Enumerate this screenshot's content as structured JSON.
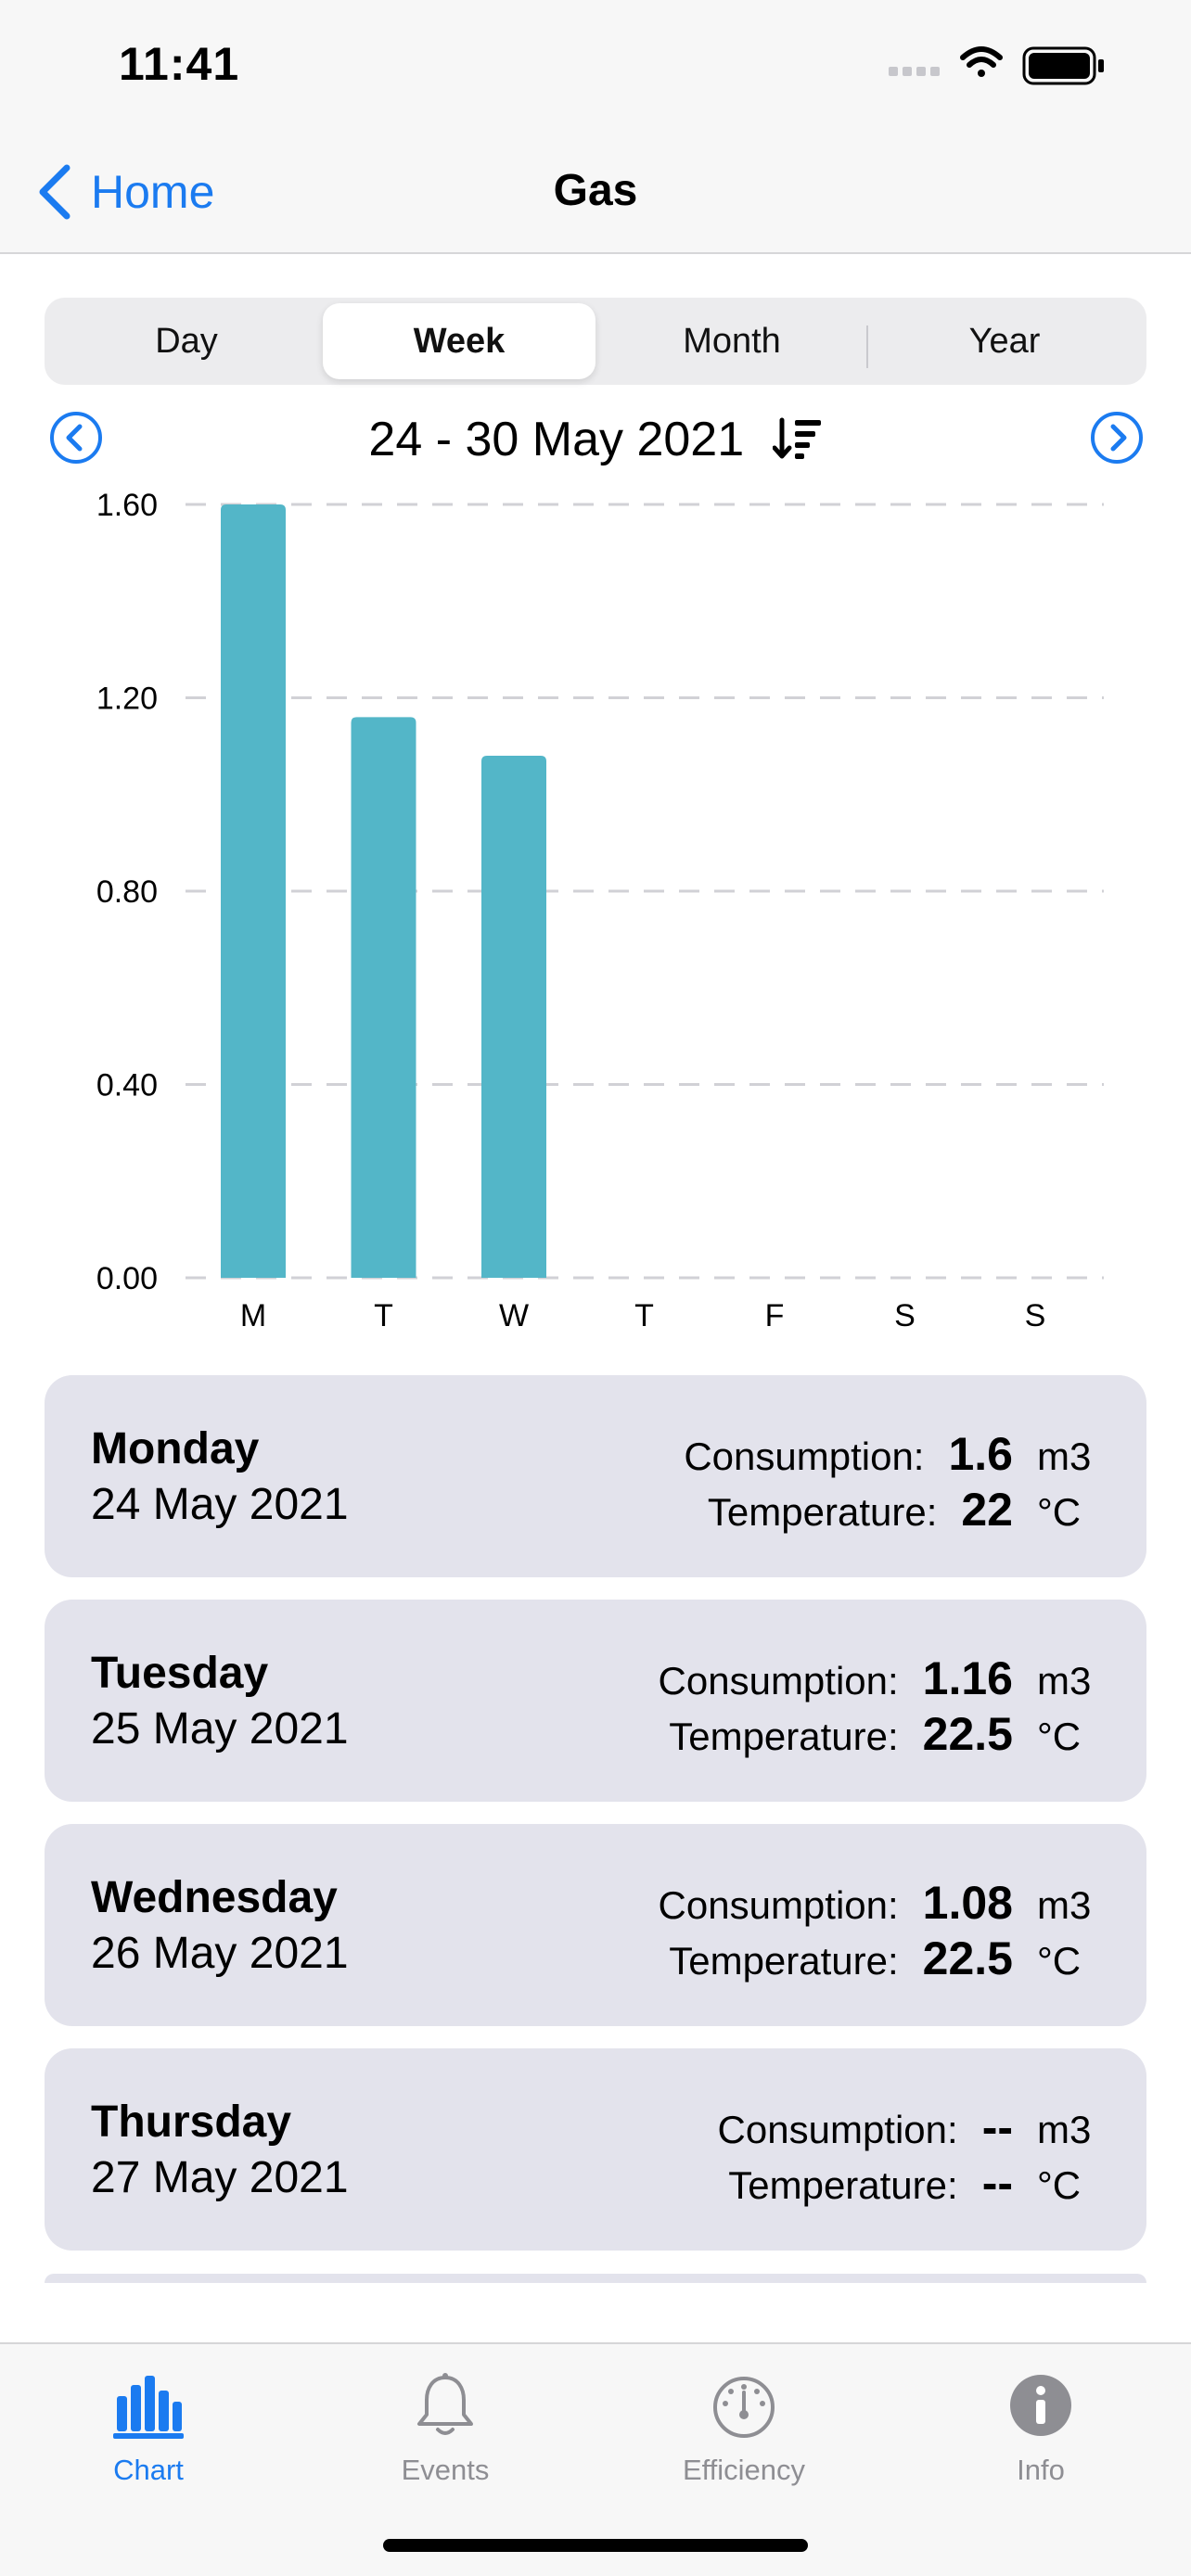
{
  "status_bar": {
    "time": "11:41"
  },
  "nav": {
    "back_label": "Home",
    "title": "Gas"
  },
  "segments": [
    "Day",
    "Week",
    "Month",
    "Year"
  ],
  "active_segment": "Week",
  "period": {
    "label": "24 - 30 May 2021"
  },
  "chart_data": {
    "type": "bar",
    "categories": [
      "M",
      "T",
      "W",
      "T",
      "F",
      "S",
      "S"
    ],
    "values": [
      1.6,
      1.16,
      1.08,
      null,
      null,
      null,
      null
    ],
    "yticks": [
      "0.00",
      "0.40",
      "0.80",
      "1.20",
      "1.60"
    ],
    "ylim": [
      0,
      1.6
    ],
    "grid": true,
    "bar_color": "#53b6c8"
  },
  "cards": [
    {
      "day": "Monday",
      "date": "24 May 2021",
      "consumption_label": "Consumption:",
      "consumption": "1.6",
      "consumption_unit": "m3",
      "temperature_label": "Temperature:",
      "temperature": "22",
      "temperature_unit": "°C"
    },
    {
      "day": "Tuesday",
      "date": "25 May 2021",
      "consumption_label": "Consumption:",
      "consumption": "1.16",
      "consumption_unit": "m3",
      "temperature_label": "Temperature:",
      "temperature": "22.5",
      "temperature_unit": "°C"
    },
    {
      "day": "Wednesday",
      "date": "26 May 2021",
      "consumption_label": "Consumption:",
      "consumption": "1.08",
      "consumption_unit": "m3",
      "temperature_label": "Temperature:",
      "temperature": "22.5",
      "temperature_unit": "°C"
    },
    {
      "day": "Thursday",
      "date": "27 May 2021",
      "consumption_label": "Consumption:",
      "consumption": "--",
      "consumption_unit": "m3",
      "temperature_label": "Temperature:",
      "temperature": "--",
      "temperature_unit": "°C"
    }
  ],
  "tabs": [
    {
      "label": "Chart",
      "icon": "bar-chart-icon",
      "active": true
    },
    {
      "label": "Events",
      "icon": "bell-icon",
      "active": false
    },
    {
      "label": "Efficiency",
      "icon": "gauge-icon",
      "active": false
    },
    {
      "label": "Info",
      "icon": "info-icon",
      "active": false
    }
  ],
  "colors": {
    "accent": "#1b7bf0",
    "bar": "#53b6c8",
    "card": "#e3e3ec"
  }
}
